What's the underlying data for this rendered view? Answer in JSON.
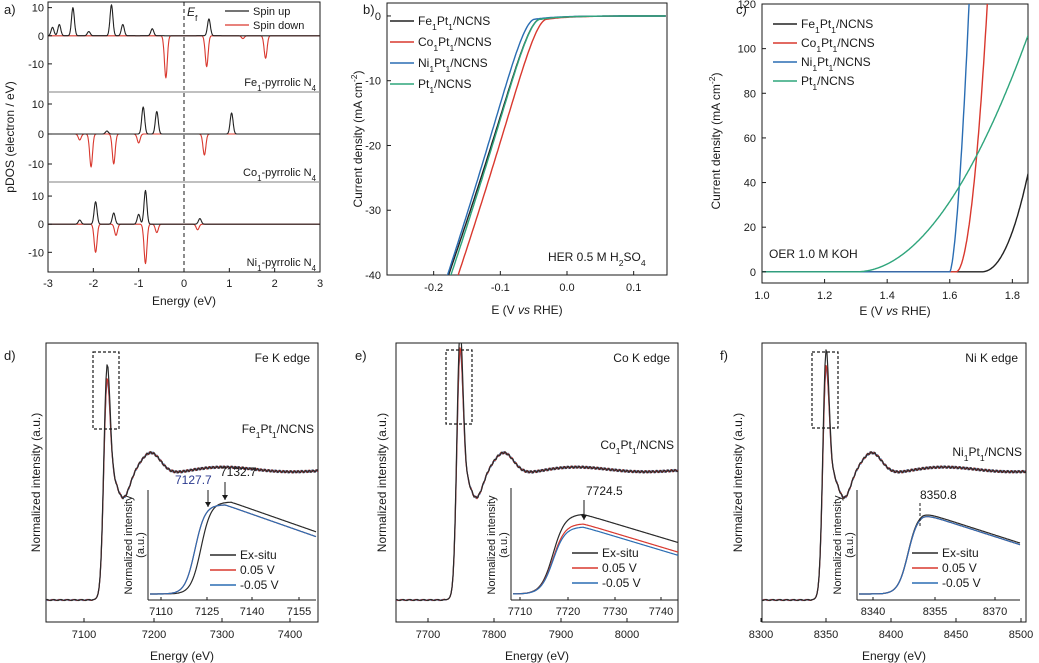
{
  "figure": {
    "width_label": "",
    "panels_order": [
      "a",
      "b",
      "c",
      "d",
      "e",
      "f"
    ]
  },
  "chart_data": [
    {
      "panel": "a",
      "type": "line",
      "xlabel": "Energy (eV)",
      "ylabel": "pDOS (electron / eV)",
      "xlim": [
        -3,
        3
      ],
      "xticks": [
        "-3",
        "-2",
        "-1",
        "0",
        "1",
        "2",
        "3"
      ],
      "fermi_label": "E",
      "fermi_sub": "f",
      "legend": [
        {
          "name": "Spin up",
          "color": "#222222"
        },
        {
          "name": "Spin down",
          "color": "#d9382e"
        }
      ],
      "subplots": [
        {
          "label": "Fe",
          "label_sub1": "1",
          "label_mid": "-pyrrolic N",
          "label_sub2": "4",
          "ylim": [
            -20,
            12
          ],
          "yticks": [
            "10",
            "0",
            "-10"
          ],
          "up": [
            {
              "e": -2.9,
              "h": 3
            },
            {
              "e": -2.75,
              "h": 4
            },
            {
              "e": -2.45,
              "h": 10
            },
            {
              "e": -2.1,
              "h": 1.5
            },
            {
              "e": -1.6,
              "h": 11
            },
            {
              "e": -1.35,
              "h": 4
            },
            {
              "e": -0.7,
              "h": 2.5
            },
            {
              "e": 0.55,
              "h": 6
            }
          ],
          "down": [
            {
              "e": -0.4,
              "h": -15
            },
            {
              "e": 0.5,
              "h": -11
            },
            {
              "e": 1.3,
              "h": -1
            },
            {
              "e": 1.8,
              "h": -8
            }
          ]
        },
        {
          "label": "Co",
          "label_sub1": "1",
          "label_mid": "-pyrrolic N",
          "label_sub2": "4",
          "ylim": [
            -16,
            14
          ],
          "yticks": [
            "10",
            "0",
            "-10"
          ],
          "up": [
            {
              "e": -1.7,
              "h": 1
            },
            {
              "e": -0.9,
              "h": 9
            },
            {
              "e": -0.6,
              "h": 7.5
            },
            {
              "e": 1.05,
              "h": 7
            }
          ],
          "down": [
            {
              "e": -2.3,
              "h": -2
            },
            {
              "e": -2.05,
              "h": -11
            },
            {
              "e": -1.55,
              "h": -10
            },
            {
              "e": -1.0,
              "h": -3
            },
            {
              "e": 0.45,
              "h": -7
            }
          ]
        },
        {
          "label": "Ni",
          "label_sub1": "1",
          "label_mid": "-pyrrolic N",
          "label_sub2": "4",
          "ylim": [
            -17,
            15
          ],
          "yticks": [
            "10",
            "0",
            "-10"
          ],
          "up": [
            {
              "e": -2.3,
              "h": 1.5
            },
            {
              "e": -1.95,
              "h": 8
            },
            {
              "e": -1.55,
              "h": 4
            },
            {
              "e": -1.0,
              "h": 3.5
            },
            {
              "e": -0.85,
              "h": 12
            },
            {
              "e": 0.35,
              "h": 2
            }
          ],
          "down": [
            {
              "e": -1.95,
              "h": -10
            },
            {
              "e": -1.5,
              "h": -4
            },
            {
              "e": -0.85,
              "h": -14
            },
            {
              "e": -0.6,
              "h": -3
            },
            {
              "e": 0.3,
              "h": -2
            }
          ]
        }
      ]
    },
    {
      "panel": "b",
      "type": "line",
      "xlabel_pre": "E (V ",
      "xlabel_it": "vs",
      "xlabel_post": " RHE)",
      "ylabel_pre": "Current density (mA cm",
      "ylabel_sup": "-2",
      "ylabel_post": ")",
      "xlim": [
        -0.27,
        0.15
      ],
      "ylim": [
        -40,
        2
      ],
      "xticks": [
        "-0.2",
        "-0.1",
        "0.0",
        "0.1"
      ],
      "yticks": [
        "0",
        "-10",
        "-20",
        "-30",
        "-40"
      ],
      "annotation": {
        "pre": "HER 0.5 M H",
        "sub": "2",
        "mid": "SO",
        "sub2": "4"
      },
      "series": [
        {
          "name": "Fe1Pt1/NCNS",
          "m": "Fe",
          "color": "#222222",
          "onset": -0.04,
          "slope": 290,
          "curv": 1.4
        },
        {
          "name": "Co1Pt1/NCNS",
          "m": "Co",
          "color": "#d9382e",
          "onset": -0.03,
          "slope": 300,
          "curv": 1.45
        },
        {
          "name": "Ni1Pt1/NCNS",
          "m": "Ni",
          "color": "#2a6db3",
          "onset": -0.048,
          "slope": 305,
          "curv": 1.35
        },
        {
          "name": "Pt1/NCNS",
          "m": "",
          "color": "#2fa57c",
          "onset": -0.04,
          "slope": 298,
          "curv": 1.4
        }
      ]
    },
    {
      "panel": "c",
      "type": "line",
      "xlabel_pre": "E (V ",
      "xlabel_it": "vs",
      "xlabel_post": " RHE)",
      "ylabel_pre": "Current density (mA cm",
      "ylabel_sup": "-2",
      "ylabel_post": ")",
      "xlim": [
        1.0,
        1.85
      ],
      "ylim": [
        -5,
        120
      ],
      "xticks": [
        "1.0",
        "1.2",
        "1.4",
        "1.6",
        "1.8"
      ],
      "yticks": [
        "0",
        "20",
        "40",
        "60",
        "80",
        "100",
        "120"
      ],
      "annotation": "OER 1.0 M KOH",
      "series": [
        {
          "name": "Fe1Pt1/NCNS",
          "m": "Fe",
          "color": "#222222",
          "onset": 1.7,
          "k": 18,
          "p": 2.2
        },
        {
          "name": "Co1Pt1/NCNS",
          "m": "Co",
          "color": "#d9382e",
          "onset": 1.62,
          "k": 120,
          "p": 2.0
        },
        {
          "name": "Ni1Pt1/NCNS",
          "m": "Ni",
          "color": "#2a6db3",
          "onset": 1.6,
          "k": 260,
          "p": 1.6
        },
        {
          "name": "Pt1/NCNS",
          "m": "",
          "color": "#2fa57c",
          "onset": 1.3,
          "k": 3.5,
          "p": 2.0
        }
      ]
    },
    {
      "panel": "d",
      "type": "line",
      "edge": "Fe K edge",
      "sample": "Fe1Pt1/NCNS",
      "m": "Fe",
      "xlabel": "Energy (eV)",
      "ylabel": "Normalized intensity (a.u.)",
      "xticks": [
        "7100",
        "7200",
        "7300",
        "7400"
      ],
      "inset": {
        "ylabel": "Normalized intensity",
        "ylabel2": "(a.u.)",
        "xticks": [
          "7110",
          "7125",
          "7140",
          "7155"
        ],
        "peaks": [
          {
            "label": "7127.7",
            "color": "#2b3a8f"
          },
          {
            "label": "7132.7",
            "color": "#1a1a1a"
          }
        ]
      },
      "legend": [
        {
          "name": "Ex-situ",
          "color": "#2a2a2a"
        },
        {
          "name": "0.05 V",
          "color": "#d9382e"
        },
        {
          "name": "-0.05 V",
          "color": "#2a6db3"
        }
      ]
    },
    {
      "panel": "e",
      "type": "line",
      "edge": "Co K edge",
      "sample": "Co1Pt1/NCNS",
      "m": "Co",
      "xlabel": "Energy (eV)",
      "ylabel": "Normalized intensity (a.u.)",
      "xticks": [
        "7700",
        "7800",
        "7900",
        "8000"
      ],
      "inset": {
        "ylabel": "Normalized intensity",
        "ylabel2": "(a.u.)",
        "xticks": [
          "7710",
          "7720",
          "7730",
          "7740"
        ],
        "peaks": [
          {
            "label": "7724.5",
            "color": "#1a1a1a"
          }
        ]
      },
      "legend": [
        {
          "name": "Ex-situ",
          "color": "#2a2a2a"
        },
        {
          "name": "0.05 V",
          "color": "#d9382e"
        },
        {
          "name": "-0.05 V",
          "color": "#2a6db3"
        }
      ]
    },
    {
      "panel": "f",
      "type": "line",
      "edge": "Ni K edge",
      "sample": "Ni1Pt1/NCNS",
      "m": "Ni",
      "xlabel": "Energy (eV)",
      "ylabel": "Normalized intensity (a.u.)",
      "xticks": [
        "8300",
        "8350",
        "8400",
        "8450",
        "8500"
      ],
      "inset": {
        "ylabel": "Normalized intensity",
        "ylabel2": "(a.u.)",
        "xticks": [
          "8340",
          "8355",
          "8370"
        ],
        "peaks": [
          {
            "label": "8350.8",
            "color": "#1a1a1a"
          }
        ]
      },
      "legend": [
        {
          "name": "Ex-situ",
          "color": "#2a2a2a"
        },
        {
          "name": "0.05 V",
          "color": "#d9382e"
        },
        {
          "name": "-0.05 V",
          "color": "#2a6db3"
        }
      ]
    }
  ]
}
